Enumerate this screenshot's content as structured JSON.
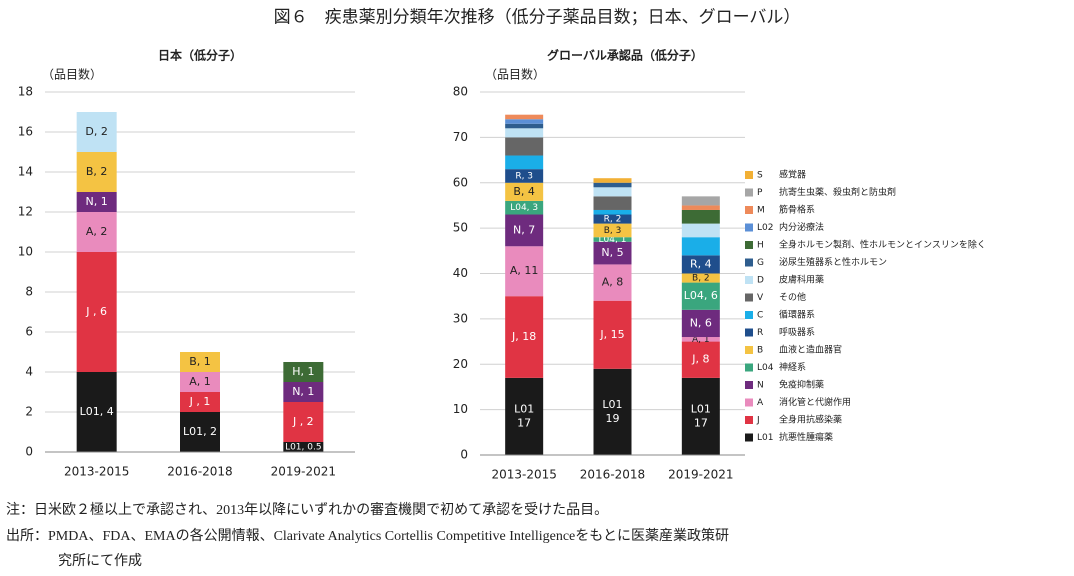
{
  "title": "図６　疾患薬別分類年次推移（低分子薬品目数；日本、グローバル）",
  "notes": [
    "注：日米欧２極以上で承認され、2013年以降にいずれかの審査機関で初めて承認を受けた品目。",
    "出所：PMDA、FDA、EMAの各公開情報、Clarivate Analytics Cortellis Competitive Intelligenceをもとに医薬産業政策研",
    "究所にて作成"
  ],
  "chart_data": [
    {
      "type": "bar",
      "stacked": true,
      "title": "日本（低分子）",
      "y_label": "（品目数）",
      "grid": true,
      "legend": false,
      "categories": [
        "2013-2015",
        "2016-2018",
        "2019-2021"
      ],
      "ylim": [
        0,
        18
      ],
      "yticks": [
        0,
        2,
        4,
        6,
        8,
        10,
        12,
        14,
        16,
        18
      ],
      "series": [
        {
          "color": "#1a1a1a",
          "values": [
            4,
            2,
            0.5
          ],
          "value_labels": [
            "L01, 4",
            "L01, 2",
            "L01, 0.5"
          ]
        },
        {
          "color": "#e03444",
          "values": [
            6,
            1,
            2
          ],
          "value_labels": [
            "J , 6",
            "J , 1",
            "J , 2"
          ]
        },
        {
          "color": "#e98bbd",
          "values": [
            2,
            1,
            null
          ],
          "value_labels": [
            "A, 2",
            "A, 1",
            null
          ]
        },
        {
          "color": "#6e2b7e",
          "values": [
            1,
            null,
            1
          ],
          "value_labels": [
            "N, 1",
            null,
            "N, 1"
          ]
        },
        {
          "color": "#f4c343",
          "values": [
            2,
            1,
            null
          ],
          "value_labels": [
            "B, 2",
            "B, 1",
            null
          ]
        },
        {
          "color": "#bfe2f4",
          "values": [
            2,
            null,
            null
          ],
          "value_labels": [
            "D, 2",
            null,
            null
          ]
        },
        {
          "color": "#3d6b35",
          "values": [
            null,
            null,
            1
          ],
          "value_labels": [
            null,
            null,
            "H, 1"
          ]
        }
      ]
    },
    {
      "type": "bar",
      "stacked": true,
      "title": "グローバル承認品（低分子）",
      "y_label": "（品目数）",
      "grid": true,
      "legend": true,
      "categories": [
        "2013-2015",
        "2016-2018",
        "2019-2021"
      ],
      "ylim": [
        0,
        80
      ],
      "yticks": [
        0,
        10,
        20,
        30,
        40,
        50,
        60,
        70,
        80
      ],
      "series": [
        {
          "name": "L01",
          "description": "抗悪性腫瘍薬",
          "color": "#1a1a1a",
          "values": [
            17,
            19,
            17
          ],
          "value_labels": [
            "L01\n17",
            "L01\n19",
            "L01\n17"
          ]
        },
        {
          "name": "J",
          "description": "全身用抗感染薬",
          "color": "#e03444",
          "values": [
            18,
            15,
            8
          ],
          "value_labels": [
            "J, 18",
            "J, 15",
            "J, 8"
          ]
        },
        {
          "name": "A",
          "description": "消化管と代謝作用",
          "color": "#e98bbd",
          "values": [
            11,
            8,
            1
          ],
          "value_labels": [
            "A, 11",
            "A, 8",
            "A, 1"
          ]
        },
        {
          "name": "N",
          "description": "免疫抑制薬",
          "color": "#6e2b7e",
          "values": [
            7,
            5,
            6
          ],
          "value_labels": [
            "N, 7",
            "N, 5",
            "N, 6"
          ]
        },
        {
          "name": "L04",
          "description": "神経系",
          "color": "#3aa67e",
          "values": [
            3,
            1,
            6
          ],
          "value_labels": [
            "L04, 3",
            "L04, 1",
            "L04, 6"
          ]
        },
        {
          "name": "B",
          "description": "血液と造血器官",
          "color": "#f4c343",
          "values": [
            4,
            3,
            2
          ],
          "value_labels": [
            "B, 4",
            "B, 3",
            "B, 2"
          ]
        },
        {
          "name": "R",
          "description": "呼吸器系",
          "color": "#1f4e8c",
          "values": [
            3,
            2,
            4
          ],
          "value_labels": [
            "R, 3",
            "R, 2",
            "R, 4"
          ]
        },
        {
          "name": "C",
          "description": "循環器系",
          "color": "#1aaee8",
          "values": [
            3,
            1,
            4
          ]
        },
        {
          "name": "V",
          "description": "その他",
          "color": "#666666",
          "values": [
            4,
            3,
            null
          ]
        },
        {
          "name": "D",
          "description": "皮膚科用薬",
          "color": "#bfe2f4",
          "values": [
            2,
            2,
            3
          ]
        },
        {
          "name": "G",
          "description": "泌尿生殖器系と性ホルモン",
          "color": "#2e5d8e",
          "values": [
            1,
            1,
            null
          ]
        },
        {
          "name": "H",
          "description": "全身ホルモン製剤、性ホルモンとインスリンを除く",
          "color": "#3d6b35",
          "values": [
            null,
            null,
            3
          ]
        },
        {
          "name": "L02",
          "description": "内分泌療法",
          "color": "#5b8fd6",
          "values": [
            1,
            null,
            null
          ]
        },
        {
          "name": "M",
          "description": "筋骨格系",
          "color": "#ee8a5a",
          "values": [
            1,
            null,
            1
          ]
        },
        {
          "name": "P",
          "description": "抗寄生虫薬、殺虫剤と防虫剤",
          "color": "#a6a6a6",
          "values": [
            null,
            null,
            2
          ]
        },
        {
          "name": "S",
          "description": "感覚器",
          "color": "#f2b035",
          "values": [
            null,
            1,
            null
          ]
        }
      ]
    }
  ]
}
